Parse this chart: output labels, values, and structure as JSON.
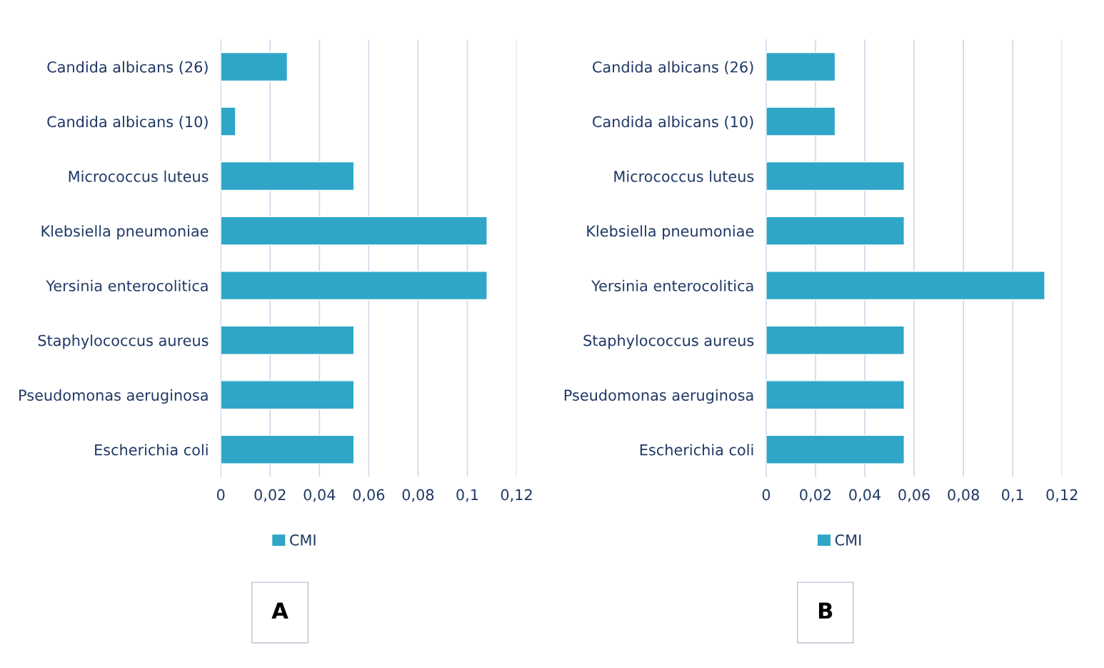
{
  "chart_data": [
    {
      "type": "bar",
      "orientation": "horizontal",
      "title": "A",
      "categories": [
        "Candida albicans (26)",
        "Candida albicans (10)",
        "Micrococcus luteus",
        "Klebsiella pneumoniae",
        "Yersinia enterocolitica",
        "Staphylococcus aureus",
        "Pseudomonas aeruginosa",
        "Escherichia coli"
      ],
      "series": [
        {
          "name": "CMI",
          "color": "#2fa6c8",
          "values": [
            0.027,
            0.006,
            0.054,
            0.108,
            0.108,
            0.054,
            0.054,
            0.054
          ]
        }
      ],
      "xlim": [
        0,
        0.12
      ],
      "xticks": [
        {
          "value": 0,
          "label": "0"
        },
        {
          "value": 0.02,
          "label": "0,02"
        },
        {
          "value": 0.04,
          "label": "0,04"
        },
        {
          "value": 0.06,
          "label": "0,06"
        },
        {
          "value": 0.08,
          "label": "0,08"
        },
        {
          "value": 0.1,
          "label": "0,1"
        },
        {
          "value": 0.12,
          "label": "0,12"
        }
      ],
      "grid": "x",
      "legend": "bottom"
    },
    {
      "type": "bar",
      "orientation": "horizontal",
      "title": "B",
      "categories": [
        "Candida albicans (26)",
        "Candida albicans (10)",
        "Micrococcus luteus",
        "Klebsiella pneumoniae",
        "Yersinia enterocolitica",
        "Staphylococcus aureus",
        "Pseudomonas aeruginosa",
        "Escherichia coli"
      ],
      "series": [
        {
          "name": "CMI",
          "color": "#2fa6c8",
          "values": [
            0.028,
            0.028,
            0.056,
            0.056,
            0.113,
            0.056,
            0.056,
            0.056
          ]
        }
      ],
      "xlim": [
        0,
        0.12
      ],
      "xticks": [
        {
          "value": 0,
          "label": "0"
        },
        {
          "value": 0.02,
          "label": "0,02"
        },
        {
          "value": 0.04,
          "label": "0,04"
        },
        {
          "value": 0.06,
          "label": "0,06"
        },
        {
          "value": 0.08,
          "label": "0,08"
        },
        {
          "value": 0.1,
          "label": "0,1"
        },
        {
          "value": 0.12,
          "label": "0,12"
        }
      ],
      "grid": "x",
      "legend": "bottom"
    }
  ]
}
